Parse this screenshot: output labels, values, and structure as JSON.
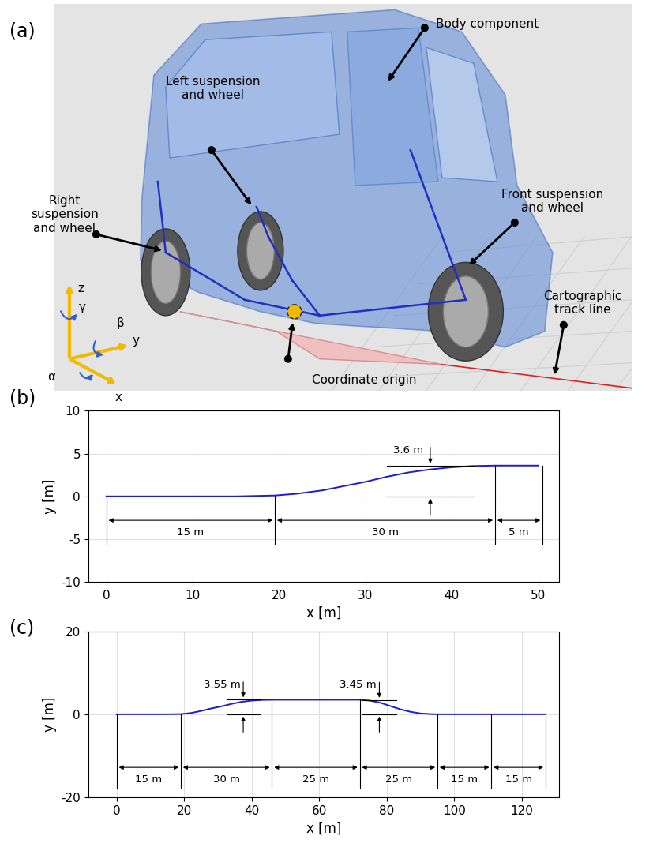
{
  "panel_labels": [
    "(a)",
    "(b)",
    "(c)"
  ],
  "diagram": {
    "body": "Body component",
    "left": "Left suspension\nand wheel",
    "right": "Right\nsuspension\nand wheel",
    "front": "Front suspension\nand wheel",
    "track": "Cartographic\ntrack line",
    "origin": "Coordinate origin",
    "axes": {
      "x": "x",
      "y": "y",
      "z": "z",
      "alpha": "α",
      "beta": "β",
      "gamma": "γ"
    }
  },
  "chart_data": [
    {
      "type": "line",
      "xlabel": "x [m]",
      "ylabel": "y [m]",
      "color": "#1c1cd6",
      "grid": true,
      "x": [
        0,
        15,
        19.5,
        22,
        25,
        27.5,
        30,
        32.5,
        35,
        37.5,
        40,
        42.5,
        45,
        50
      ],
      "values": [
        0,
        0,
        0.1,
        0.3,
        0.7,
        1.2,
        1.7,
        2.3,
        2.8,
        3.15,
        3.4,
        3.55,
        3.6,
        3.6
      ],
      "xlim": [
        -2.1,
        52.4
      ],
      "ylim": [
        -10,
        10
      ],
      "xticks": [
        0,
        10,
        20,
        30,
        40,
        50
      ],
      "yticks": [
        -10,
        -5,
        0,
        5,
        10
      ],
      "dimensions": [
        {
          "label": "15 m",
          "x": [
            0,
            19.5
          ]
        },
        {
          "label": "30 m",
          "x": [
            19.5,
            45
          ]
        },
        {
          "label": "5 m",
          "x": [
            45,
            50.5
          ]
        }
      ],
      "heights": [
        {
          "label": "3.6 m",
          "x": 37.5,
          "y": [
            0,
            3.6
          ]
        }
      ]
    },
    {
      "type": "line",
      "xlabel": "x [m]",
      "ylabel": "y [m]",
      "color": "#1c1cd6",
      "grid": true,
      "x": [
        0,
        15,
        19,
        22,
        25,
        28,
        31,
        34,
        37,
        40,
        43,
        46,
        72,
        75,
        78,
        81,
        84,
        87,
        90,
        93,
        95,
        127
      ],
      "values": [
        0,
        0,
        0.05,
        0.3,
        0.8,
        1.4,
        1.9,
        2.5,
        3.0,
        3.3,
        3.45,
        3.5,
        3.5,
        3.3,
        2.8,
        2.0,
        1.2,
        0.6,
        0.2,
        0.05,
        0,
        0
      ],
      "xlim": [
        -8.4,
        131
      ],
      "ylim": [
        -20,
        20
      ],
      "xticks": [
        0,
        20,
        40,
        60,
        80,
        100,
        120
      ],
      "yticks": [
        -20,
        0,
        20
      ],
      "dimensions": [
        {
          "label": "15 m",
          "x": [
            0,
            19
          ]
        },
        {
          "label": "30 m",
          "x": [
            19,
            46
          ]
        },
        {
          "label": "25 m",
          "x": [
            46,
            72
          ]
        },
        {
          "label": "25 m",
          "x": [
            72,
            95
          ]
        },
        {
          "label": "15 m",
          "x": [
            95,
            111
          ]
        },
        {
          "label": "15 m",
          "x": [
            111,
            127
          ]
        }
      ],
      "heights": [
        {
          "label": "3.55 m",
          "x": 37.5,
          "y": [
            0,
            3.55
          ]
        },
        {
          "label": "3.45 m",
          "x": 77.8,
          "y": [
            0,
            3.45
          ]
        }
      ]
    }
  ]
}
